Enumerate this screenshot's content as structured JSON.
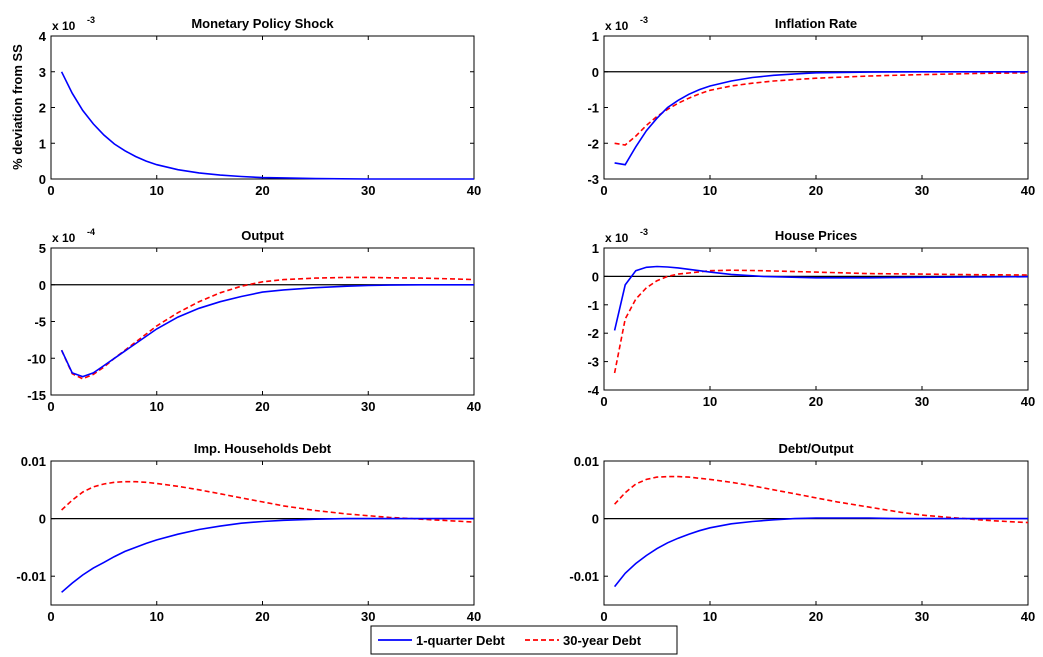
{
  "figure": {
    "ylabel": "% deviation from SS"
  },
  "legend": {
    "placement": "bottom-center",
    "entries": [
      {
        "label": "1-quarter Debt",
        "color": "#0000ff",
        "style": "solid"
      },
      {
        "label": "30-year Debt",
        "color": "#ff0000",
        "style": "dashed"
      }
    ]
  },
  "chart_data": [
    {
      "type": "line",
      "title": "Monetary Policy Shock",
      "xlim": [
        0,
        40
      ],
      "ylim": [
        0,
        4
      ],
      "xticks": [
        0,
        10,
        20,
        30,
        40
      ],
      "yticks": [
        0,
        1,
        2,
        3,
        4
      ],
      "scale_label": "x 10",
      "scale_exp": "-3",
      "zero_line": false,
      "x": [
        1,
        2,
        3,
        4,
        5,
        6,
        7,
        8,
        9,
        10,
        12,
        14,
        16,
        18,
        20,
        22,
        25,
        30,
        35,
        40
      ],
      "series": [
        {
          "name": "1-quarter Debt",
          "values": [
            3.0,
            2.4,
            1.92,
            1.54,
            1.23,
            0.98,
            0.79,
            0.63,
            0.5,
            0.4,
            0.26,
            0.17,
            0.11,
            0.07,
            0.04,
            0.03,
            0.01,
            0.0,
            0.0,
            0.0
          ]
        }
      ]
    },
    {
      "type": "line",
      "title": "Inflation Rate",
      "xlim": [
        0,
        40
      ],
      "ylim": [
        -3,
        1
      ],
      "xticks": [
        0,
        10,
        20,
        30,
        40
      ],
      "yticks": [
        -3,
        -2,
        -1,
        0,
        1
      ],
      "scale_label": "x 10",
      "scale_exp": "-3",
      "zero_line": true,
      "x": [
        1,
        2,
        3,
        4,
        5,
        6,
        7,
        8,
        9,
        10,
        12,
        14,
        16,
        18,
        20,
        25,
        30,
        35,
        40
      ],
      "series": [
        {
          "name": "1-quarter Debt",
          "values": [
            -2.55,
            -2.6,
            -2.1,
            -1.65,
            -1.3,
            -1.0,
            -0.8,
            -0.63,
            -0.5,
            -0.4,
            -0.26,
            -0.16,
            -0.1,
            -0.06,
            -0.03,
            -0.01,
            0.0,
            0.0,
            0.0
          ]
        },
        {
          "name": "30-year Debt",
          "values": [
            -2.0,
            -2.05,
            -1.8,
            -1.5,
            -1.25,
            -1.05,
            -0.88,
            -0.74,
            -0.62,
            -0.52,
            -0.4,
            -0.32,
            -0.26,
            -0.22,
            -0.18,
            -0.12,
            -0.08,
            -0.05,
            -0.03
          ]
        }
      ]
    },
    {
      "type": "line",
      "title": "Output",
      "xlim": [
        0,
        40
      ],
      "ylim": [
        -15,
        5
      ],
      "xticks": [
        0,
        10,
        20,
        30,
        40
      ],
      "yticks": [
        -15,
        -10,
        -5,
        0,
        5
      ],
      "scale_label": "x 10",
      "scale_exp": "-4",
      "zero_line": true,
      "x": [
        1,
        2,
        3,
        4,
        5,
        6,
        8,
        10,
        12,
        14,
        16,
        18,
        20,
        22,
        25,
        28,
        30,
        32,
        35,
        38,
        40
      ],
      "series": [
        {
          "name": "1-quarter Debt",
          "values": [
            -8.9,
            -12.0,
            -12.5,
            -12.0,
            -11.0,
            -10.0,
            -8.0,
            -6.0,
            -4.4,
            -3.2,
            -2.3,
            -1.6,
            -1.0,
            -0.7,
            -0.4,
            -0.2,
            -0.1,
            -0.05,
            0.0,
            0.0,
            0.0
          ]
        },
        {
          "name": "30-year Debt",
          "values": [
            -8.9,
            -12.1,
            -12.8,
            -12.2,
            -11.2,
            -10.0,
            -7.8,
            -5.6,
            -3.8,
            -2.3,
            -1.1,
            -0.2,
            0.4,
            0.7,
            0.9,
            1.0,
            1.0,
            0.95,
            0.9,
            0.8,
            0.7
          ]
        }
      ]
    },
    {
      "type": "line",
      "title": "House Prices",
      "xlim": [
        0,
        40
      ],
      "ylim": [
        -4,
        1
      ],
      "xticks": [
        0,
        10,
        20,
        30,
        40
      ],
      "yticks": [
        -4,
        -3,
        -2,
        -1,
        0,
        1
      ],
      "scale_label": "x 10",
      "scale_exp": "-3",
      "zero_line": true,
      "x": [
        1,
        2,
        3,
        4,
        5,
        6,
        7,
        8,
        10,
        12,
        15,
        20,
        25,
        30,
        35,
        40
      ],
      "series": [
        {
          "name": "1-quarter Debt",
          "values": [
            -1.9,
            -0.3,
            0.2,
            0.32,
            0.35,
            0.33,
            0.3,
            0.25,
            0.15,
            0.07,
            0.0,
            -0.05,
            -0.05,
            -0.03,
            -0.02,
            -0.01
          ]
        },
        {
          "name": "30-year Debt",
          "values": [
            -3.4,
            -1.5,
            -0.8,
            -0.4,
            -0.15,
            0.0,
            0.08,
            0.12,
            0.2,
            0.22,
            0.2,
            0.15,
            0.1,
            0.08,
            0.06,
            0.05
          ]
        }
      ]
    },
    {
      "type": "line",
      "title": "Imp. Households Debt",
      "xlim": [
        0,
        40
      ],
      "ylim": [
        -0.015,
        0.01
      ],
      "xticks": [
        0,
        10,
        20,
        30,
        40
      ],
      "yticks": [
        -0.01,
        0,
        0.01
      ],
      "ytick_labels": [
        "-0.01",
        "0",
        "0.01"
      ],
      "zero_line": true,
      "x": [
        1,
        2,
        3,
        4,
        5,
        6,
        7,
        8,
        9,
        10,
        12,
        14,
        16,
        18,
        20,
        22,
        25,
        28,
        30,
        32,
        34,
        36,
        38,
        40
      ],
      "series": [
        {
          "name": "1-quarter Debt",
          "values": [
            -0.0128,
            -0.0112,
            -0.0098,
            -0.0086,
            -0.0076,
            -0.0066,
            -0.0057,
            -0.005,
            -0.0043,
            -0.0037,
            -0.0027,
            -0.0019,
            -0.0013,
            -0.0008,
            -0.0005,
            -0.0003,
            -0.0001,
            0.0,
            0.0,
            0.0,
            0.0,
            0.0,
            0.0,
            0.0
          ]
        },
        {
          "name": "30-year Debt",
          "values": [
            0.0015,
            0.0032,
            0.0046,
            0.0055,
            0.006,
            0.0063,
            0.0064,
            0.0064,
            0.0063,
            0.0061,
            0.0056,
            0.005,
            0.0043,
            0.0036,
            0.0029,
            0.0022,
            0.0014,
            0.0008,
            0.0005,
            0.0002,
            0.0,
            -0.0002,
            -0.0004,
            -0.0006
          ]
        }
      ]
    },
    {
      "type": "line",
      "title": "Debt/Output",
      "xlim": [
        0,
        40
      ],
      "ylim": [
        -0.015,
        0.01
      ],
      "xticks": [
        0,
        10,
        20,
        30,
        40
      ],
      "yticks": [
        -0.01,
        0,
        0.01
      ],
      "ytick_labels": [
        "-0.01",
        "0",
        "0.01"
      ],
      "zero_line": true,
      "x": [
        1,
        2,
        3,
        4,
        5,
        6,
        7,
        8,
        9,
        10,
        12,
        14,
        16,
        18,
        20,
        22,
        25,
        28,
        30,
        32,
        34,
        36,
        38,
        40
      ],
      "series": [
        {
          "name": "1-quarter Debt",
          "values": [
            -0.0118,
            -0.0095,
            -0.0078,
            -0.0064,
            -0.0052,
            -0.0042,
            -0.0034,
            -0.0027,
            -0.0021,
            -0.0016,
            -0.0009,
            -0.0005,
            -0.0002,
            0.0,
            0.0001,
            0.0001,
            0.0001,
            0.0,
            0.0,
            0.0,
            0.0,
            0.0,
            0.0,
            0.0
          ]
        },
        {
          "name": "30-year Debt",
          "values": [
            0.0025,
            0.0045,
            0.006,
            0.0068,
            0.0072,
            0.0073,
            0.0073,
            0.0072,
            0.007,
            0.0068,
            0.0063,
            0.0057,
            0.005,
            0.0043,
            0.0036,
            0.0029,
            0.002,
            0.0011,
            0.0006,
            0.0003,
            0.0,
            -0.0003,
            -0.0005,
            -0.0007
          ]
        }
      ]
    }
  ]
}
